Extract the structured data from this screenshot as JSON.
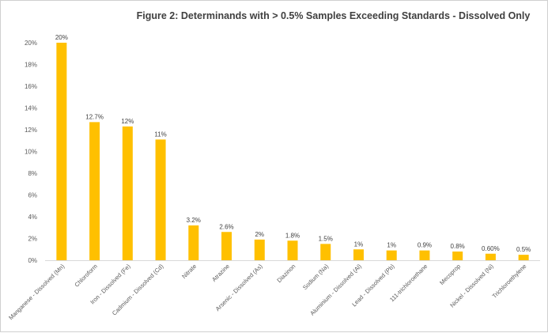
{
  "chart_data": {
    "type": "bar",
    "title": "Figure 2: Determinands with > 0.5% Samples Exceeding Standards - Dissolved Only",
    "xlabel": "",
    "ylabel": "",
    "ylim": [
      0,
      20
    ],
    "yticks": [
      0,
      2,
      4,
      6,
      8,
      10,
      12,
      14,
      16,
      18,
      20
    ],
    "ytick_labels": [
      "0%",
      "2%",
      "4%",
      "6%",
      "8%",
      "10%",
      "12%",
      "14%",
      "16%",
      "18%",
      "20%"
    ],
    "grid": false,
    "legend": false,
    "bar_color": "#FFC000",
    "categories": [
      "Manganese - Dissolved (Mn)",
      "Chloroform",
      "Iron - Dissolved  (Fe)",
      "Cadmium - Dissolved (Cd)",
      "Nitrate",
      "Atrazine",
      "Arsenic - Dissolved (As)",
      "Diazinon",
      "Sodium (Na)",
      "Aluminium - Dissolved (Al)",
      "Lead - Dissolved (Pb)",
      "111-trichloroethane",
      "Mecoprop",
      "Nickel - Dissolved (Ni)",
      "Trichloroethylene"
    ],
    "values": [
      20,
      12.7,
      12.3,
      11.1,
      3.2,
      2.6,
      1.9,
      1.8,
      1.5,
      1.0,
      0.9,
      0.9,
      0.8,
      0.6,
      0.5
    ],
    "data_labels": [
      "20%",
      "12.7%",
      "12%",
      "11%",
      "3.2%",
      "2.6%",
      "2%",
      "1.8%",
      "1.5%",
      "1%",
      "1%",
      "0.9%",
      "0.8%",
      "0.60%",
      "0.5%"
    ]
  }
}
